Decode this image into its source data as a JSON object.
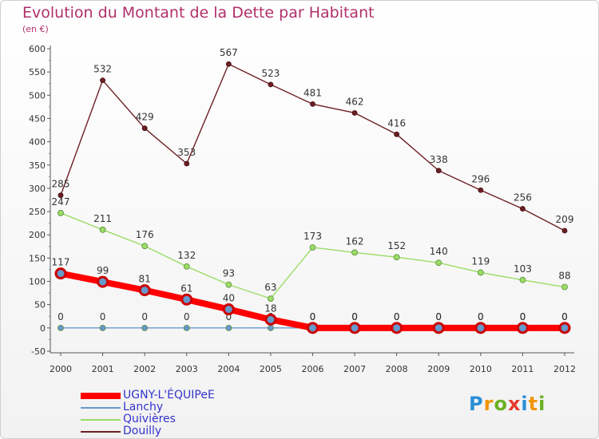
{
  "header": {
    "title": "Evolution du Montant de la Dette par Habitant",
    "unit": "(en €)"
  },
  "logo": {
    "text": "Proxiti",
    "colors": [
      "#2a8fd6",
      "#f29400",
      "#6ab023",
      "#e63b2e",
      "#2a8fd6",
      "#f29400",
      "#6ab023"
    ]
  },
  "chart_data": {
    "type": "line",
    "title": "Evolution du Montant de la Dette par Habitant",
    "subtitle": "(en €)",
    "xlabel": "",
    "ylabel": "",
    "ylim": [
      -50,
      600
    ],
    "yticks": [
      -50,
      0,
      50,
      100,
      150,
      200,
      250,
      300,
      350,
      400,
      450,
      500,
      550,
      600
    ],
    "grid": false,
    "legend_position": "bottom-left",
    "x": [
      "2000",
      "2001",
      "2002",
      "2003",
      "2004",
      "2005",
      "2006",
      "2007",
      "2008",
      "2009",
      "2010",
      "2011",
      "2012"
    ],
    "series": [
      {
        "name": "Douilly",
        "color": "#6e1f24",
        "width": 1.4,
        "marker": 3,
        "values": [
          285,
          532,
          429,
          353,
          567,
          523,
          481,
          462,
          416,
          338,
          296,
          256,
          209
        ]
      },
      {
        "name": "Quivières",
        "color": "#99dd66",
        "width": 1.4,
        "marker": 3.5,
        "values": [
          247,
          211,
          176,
          132,
          93,
          63,
          173,
          162,
          152,
          140,
          119,
          103,
          88
        ]
      },
      {
        "name": "Lanchy",
        "color": "#6699cc",
        "width": 1.4,
        "marker": 3.5,
        "values": [
          0,
          0,
          0,
          0,
          0,
          0,
          0,
          0,
          0,
          0,
          0,
          0,
          0
        ]
      },
      {
        "name": "UGNY-L'ÉQUIPeE",
        "color": "#ff0000",
        "width": 8,
        "marker": 6,
        "values": [
          117,
          99,
          81,
          61,
          40,
          18,
          0,
          0,
          0,
          0,
          0,
          0,
          0
        ]
      }
    ],
    "legend": [
      {
        "name": "UGNY-L'ÉQUIPeE",
        "color": "#ff0000",
        "thickness": 8
      },
      {
        "name": "Lanchy",
        "color": "#6699cc",
        "thickness": 2
      },
      {
        "name": "Quivières",
        "color": "#99dd66",
        "thickness": 2
      },
      {
        "name": "Douilly",
        "color": "#6e1f24",
        "thickness": 2
      }
    ]
  }
}
